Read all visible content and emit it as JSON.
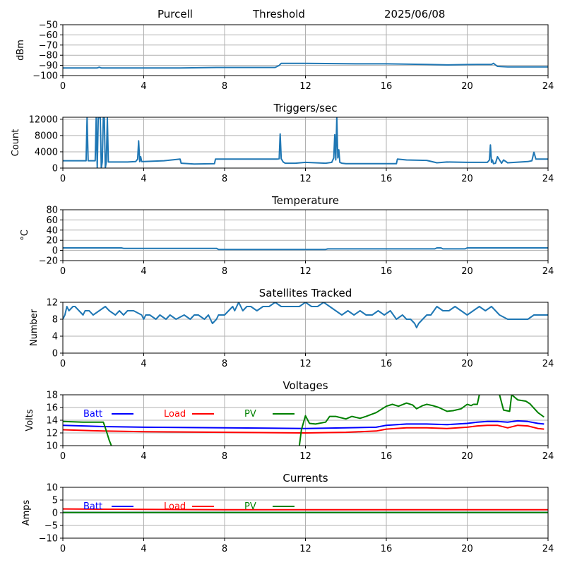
{
  "header": {
    "station": "Purcell",
    "mode": "Threshold",
    "date": "2025/06/08"
  },
  "colors": {
    "series": "#1f77b4",
    "batt": "#0000ff",
    "load": "#ff0000",
    "pv": "#008000",
    "grid": "#b0b0b0"
  },
  "chart_data": [
    {
      "type": "line",
      "title": "",
      "xlabel": "",
      "ylabel": "dBm",
      "xlim": [
        0,
        24
      ],
      "ylim": [
        -100,
        -50
      ],
      "xticks": [
        "0",
        "4",
        "8",
        "12",
        "16",
        "20",
        "24"
      ],
      "yticks": [
        "−50",
        "−60",
        "−70",
        "−80",
        "−90",
        "−100"
      ],
      "grid": true,
      "series": [
        {
          "x": [
            0,
            1.7,
            1.8,
            1.9,
            2,
            5.8,
            7.6,
            10.5,
            10.7,
            10.8,
            12,
            14.5,
            16,
            18,
            19,
            20,
            20.5,
            21.2,
            21.3,
            21.5,
            22,
            24
          ],
          "y": [
            -92.5,
            -92.5,
            -91.8,
            -92.5,
            -92.5,
            -92.5,
            -92,
            -92,
            -90,
            -88,
            -88,
            -88.5,
            -88.5,
            -89,
            -89.5,
            -89.2,
            -89,
            -89,
            -88,
            -91,
            -91.5,
            -91.5
          ]
        }
      ]
    },
    {
      "type": "line",
      "title": "Triggers/sec",
      "xlabel": "",
      "ylabel": "Count",
      "xlim": [
        0,
        24
      ],
      "ylim": [
        0,
        12500
      ],
      "xticks": [
        "0",
        "4",
        "8",
        "12",
        "16",
        "20",
        "24"
      ],
      "yticks": [
        "12000",
        "8000",
        "4000",
        "0"
      ],
      "grid": true,
      "series": [
        {
          "x": [
            0,
            1.15,
            1.2,
            1.25,
            1.3,
            1.6,
            1.65,
            1.7,
            1.75,
            1.8,
            1.85,
            1.9,
            1.95,
            2.0,
            2.05,
            2.1,
            2.15,
            2.2,
            2.25,
            2.5,
            3.2,
            3.6,
            3.7,
            3.75,
            3.8,
            3.85,
            3.9,
            4.0,
            5.0,
            5.8,
            5.85,
            6.5,
            7.5,
            7.55,
            8.5,
            10.0,
            10.6,
            10.7,
            10.75,
            10.8,
            10.9,
            11.0,
            11.5,
            12.0,
            12.5,
            13.0,
            13.3,
            13.4,
            13.45,
            13.5,
            13.55,
            13.6,
            13.65,
            13.7,
            13.8,
            14.0,
            15.0,
            16.0,
            16.5,
            16.55,
            17.0,
            18.0,
            18.5,
            19.0,
            20.0,
            21.0,
            21.1,
            21.15,
            21.2,
            21.25,
            21.3,
            21.4,
            21.5,
            21.7,
            21.8,
            22.0,
            23.0,
            23.2,
            23.3,
            23.4,
            24
          ],
          "y": [
            1800,
            1800,
            12400,
            1800,
            1800,
            1800,
            12400,
            0,
            12400,
            12400,
            12400,
            0,
            1500,
            12400,
            12400,
            0,
            1500,
            12400,
            1500,
            1500,
            1500,
            1600,
            2200,
            6700,
            1600,
            2800,
            1600,
            1600,
            1800,
            2200,
            1200,
            1000,
            1100,
            2200,
            2200,
            2200,
            2200,
            2300,
            8400,
            2300,
            1500,
            1200,
            1200,
            1400,
            1300,
            1200,
            1400,
            2500,
            8200,
            2000,
            12500,
            2500,
            4500,
            1400,
            1200,
            1100,
            1100,
            1100,
            1100,
            2200,
            2000,
            1900,
            1300,
            1500,
            1400,
            1400,
            2000,
            5700,
            1400,
            2000,
            1100,
            1200,
            2800,
            1200,
            2000,
            1300,
            1600,
            1800,
            3900,
            2200,
            2200
          ]
        }
      ]
    },
    {
      "type": "line",
      "title": "Temperature",
      "xlabel": "",
      "ylabel": "°C",
      "xlim": [
        0,
        24
      ],
      "ylim": [
        -20,
        80
      ],
      "xticks": [
        "0",
        "4",
        "8",
        "12",
        "16",
        "20",
        "24"
      ],
      "yticks": [
        "80",
        "60",
        "40",
        "20",
        "0",
        "−20"
      ],
      "grid": true,
      "series": [
        {
          "x": [
            0,
            2.9,
            3.0,
            7.6,
            7.7,
            13.0,
            13.1,
            18.4,
            18.5,
            18.7,
            18.8,
            19.9,
            20.0,
            24
          ],
          "y": [
            5,
            5,
            4,
            4,
            2,
            2,
            3,
            3,
            5,
            5,
            3,
            3,
            5,
            5
          ]
        }
      ]
    },
    {
      "type": "line",
      "title": "Satellites Tracked",
      "xlabel": "",
      "ylabel": "Number",
      "xlim": [
        0,
        24
      ],
      "ylim": [
        0,
        12
      ],
      "xticks": [
        "0",
        "4",
        "8",
        "12",
        "16",
        "20",
        "24"
      ],
      "yticks": [
        "12",
        "8",
        "4",
        "0"
      ],
      "grid": true,
      "series": [
        {
          "x": [
            0,
            0.1,
            0.2,
            0.3,
            0.5,
            0.6,
            0.8,
            1.0,
            1.1,
            1.3,
            1.5,
            1.8,
            2.1,
            2.3,
            2.6,
            2.8,
            3.0,
            3.2,
            3.5,
            3.9,
            4.0,
            4.1,
            4.3,
            4.6,
            4.8,
            5.1,
            5.3,
            5.6,
            6.0,
            6.3,
            6.5,
            6.7,
            7.0,
            7.2,
            7.4,
            7.6,
            7.7,
            8.0,
            8.2,
            8.4,
            8.5,
            8.7,
            8.9,
            9.1,
            9.3,
            9.6,
            9.9,
            10.2,
            10.5,
            10.8,
            11.1,
            11.4,
            11.7,
            12.0,
            12.3,
            12.6,
            12.9,
            13.2,
            13.5,
            13.8,
            14.1,
            14.4,
            14.7,
            15.0,
            15.3,
            15.6,
            15.9,
            16.2,
            16.5,
            16.8,
            17.0,
            17.2,
            17.4,
            17.5,
            17.6,
            17.8,
            18.0,
            18.2,
            18.5,
            18.8,
            19.1,
            19.4,
            19.7,
            20.0,
            20.3,
            20.6,
            20.9,
            21.2,
            21.4,
            21.6,
            22.0,
            22.5,
            23.0,
            23.3,
            24
          ],
          "y": [
            8,
            9,
            11,
            10,
            11,
            11,
            10,
            9,
            10,
            10,
            9,
            10,
            11,
            10,
            9,
            10,
            9,
            10,
            10,
            9,
            8,
            9,
            9,
            8,
            9,
            8,
            9,
            8,
            9,
            8,
            9,
            9,
            8,
            9,
            7,
            8,
            9,
            9,
            10,
            11,
            10,
            12,
            10,
            11,
            11,
            10,
            11,
            11,
            12,
            11,
            11,
            11,
            11,
            12,
            11,
            11,
            12,
            11,
            10,
            9,
            10,
            9,
            10,
            9,
            9,
            10,
            9,
            10,
            8,
            9,
            8,
            8,
            7,
            6,
            7,
            8,
            9,
            9,
            11,
            10,
            10,
            11,
            10,
            9,
            10,
            11,
            10,
            11,
            10,
            9,
            8,
            8,
            8,
            9,
            9
          ]
        }
      ]
    },
    {
      "type": "line",
      "title": "Voltages",
      "xlabel": "",
      "ylabel": "Volts",
      "xlim": [
        0,
        24
      ],
      "ylim": [
        10,
        18
      ],
      "xticks": [
        "0",
        "4",
        "8",
        "12",
        "16",
        "20",
        "24"
      ],
      "yticks": [
        "18",
        "16",
        "14",
        "12",
        "10"
      ],
      "grid": true,
      "legend": "top-left",
      "series": [
        {
          "name": "Batt",
          "x": [
            0,
            2,
            4,
            8,
            12,
            14,
            15.5,
            16,
            17,
            18,
            19,
            20,
            20.5,
            21,
            21.5,
            22,
            22.5,
            23,
            23.5,
            23.8
          ],
          "y": [
            13.2,
            13.0,
            12.9,
            12.8,
            12.7,
            12.8,
            12.9,
            13.2,
            13.4,
            13.4,
            13.3,
            13.5,
            13.7,
            13.8,
            13.8,
            13.7,
            13.9,
            13.8,
            13.5,
            13.4
          ]
        },
        {
          "name": "Load",
          "x": [
            0,
            2,
            4,
            8,
            12,
            14,
            15.5,
            16,
            17,
            18,
            19,
            20,
            20.5,
            21,
            21.5,
            22,
            22.5,
            23,
            23.5,
            23.8
          ],
          "y": [
            12.5,
            12.3,
            12.2,
            12.1,
            12.0,
            12.1,
            12.3,
            12.6,
            12.8,
            12.8,
            12.7,
            12.9,
            13.1,
            13.2,
            13.2,
            12.8,
            13.2,
            13.1,
            12.7,
            12.6
          ]
        },
        {
          "name": "PV",
          "x": [
            0,
            1,
            2,
            2.1,
            2.2,
            2.3,
            2.4
          ],
          "y": [
            13.8,
            13.7,
            13.7,
            12.8,
            11.8,
            10.8,
            10
          ]
        },
        {
          "name": "",
          "x": [
            11.7,
            11.8,
            12.0,
            12.2,
            12.5,
            13.0,
            13.2,
            13.5,
            14.0,
            14.3,
            14.7,
            15.0,
            15.5,
            16.0,
            16.3,
            16.6,
            17.0,
            17.3,
            17.5,
            17.8,
            18.0,
            18.3,
            18.6,
            19.0,
            19.3,
            19.7,
            20.0,
            20.2,
            20.3
          ],
          "y": [
            10,
            12.5,
            14.7,
            13.5,
            13.4,
            13.7,
            14.6,
            14.6,
            14.2,
            14.6,
            14.3,
            14.6,
            15.2,
            16.2,
            16.5,
            16.2,
            16.7,
            16.4,
            15.8,
            16.3,
            16.5,
            16.3,
            16.0,
            15.4,
            15.5,
            15.8,
            16.5,
            16.3,
            16.5
          ]
        },
        {
          "name": "",
          "x": [
            20.3,
            20.5,
            20.6
          ],
          "y": [
            16.5,
            16.5,
            18
          ]
        },
        {
          "name": "",
          "x": [
            21.6,
            21.8,
            22.1,
            22.2,
            22.5,
            22.9,
            23.1,
            23.5,
            23.8
          ],
          "y": [
            18,
            15.6,
            15.4,
            18,
            17.2,
            17.0,
            16.6,
            15.2,
            14.5
          ]
        }
      ]
    },
    {
      "type": "line",
      "title": "Currents",
      "xlabel": "",
      "ylabel": "Amps",
      "xlim": [
        0,
        24
      ],
      "ylim": [
        -10,
        10
      ],
      "xticks": [
        "0",
        "4",
        "8",
        "12",
        "16",
        "20",
        "24"
      ],
      "yticks": [
        "10",
        "5",
        "0",
        "−5",
        "−10"
      ],
      "grid": true,
      "legend": "top-left",
      "series": [
        {
          "name": "Batt",
          "x": [
            0,
            24
          ],
          "y": [
            0.1,
            0.1
          ]
        },
        {
          "name": "Load",
          "x": [
            0,
            2,
            4,
            8,
            12,
            16,
            20,
            24
          ],
          "y": [
            1.5,
            1.4,
            1.3,
            1.2,
            1.2,
            1.2,
            1.2,
            1.2
          ]
        },
        {
          "name": "PV",
          "x": [
            0,
            24
          ],
          "y": [
            0.1,
            0.1
          ]
        }
      ]
    }
  ]
}
